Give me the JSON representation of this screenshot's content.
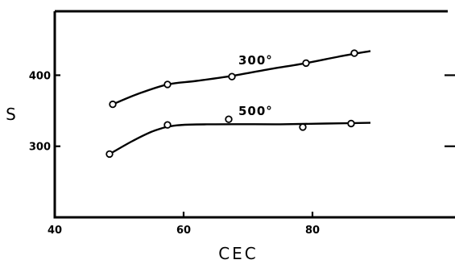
{
  "chart_data": {
    "type": "scatter",
    "xlabel": "CEC",
    "ylabel": "S",
    "xlim": [
      40,
      100
    ],
    "ylim": [
      200,
      490
    ],
    "xticks": [
      40,
      60,
      80
    ],
    "yticks": [
      300,
      400
    ],
    "grid": false,
    "series": [
      {
        "name": "300°",
        "points": [
          [
            49,
            359
          ],
          [
            57.5,
            387
          ],
          [
            67.5,
            398
          ],
          [
            79,
            417
          ],
          [
            86.5,
            431
          ]
        ],
        "curve": [
          [
            49,
            359
          ],
          [
            53,
            374
          ],
          [
            57.5,
            387
          ],
          [
            62,
            392
          ],
          [
            67.5,
            399
          ],
          [
            73,
            408
          ],
          [
            79,
            417
          ],
          [
            84,
            426
          ],
          [
            89,
            434
          ]
        ]
      },
      {
        "name": "500°",
        "points": [
          [
            48.5,
            289
          ],
          [
            57.5,
            330
          ],
          [
            67,
            338
          ],
          [
            78.5,
            327
          ],
          [
            86,
            332
          ]
        ],
        "curve": [
          [
            48.5,
            289
          ],
          [
            52,
            307
          ],
          [
            55.5,
            322
          ],
          [
            59,
            329.5
          ],
          [
            65,
            331
          ],
          [
            75,
            331
          ],
          [
            82,
            332
          ],
          [
            89,
            333
          ]
        ]
      }
    ]
  }
}
